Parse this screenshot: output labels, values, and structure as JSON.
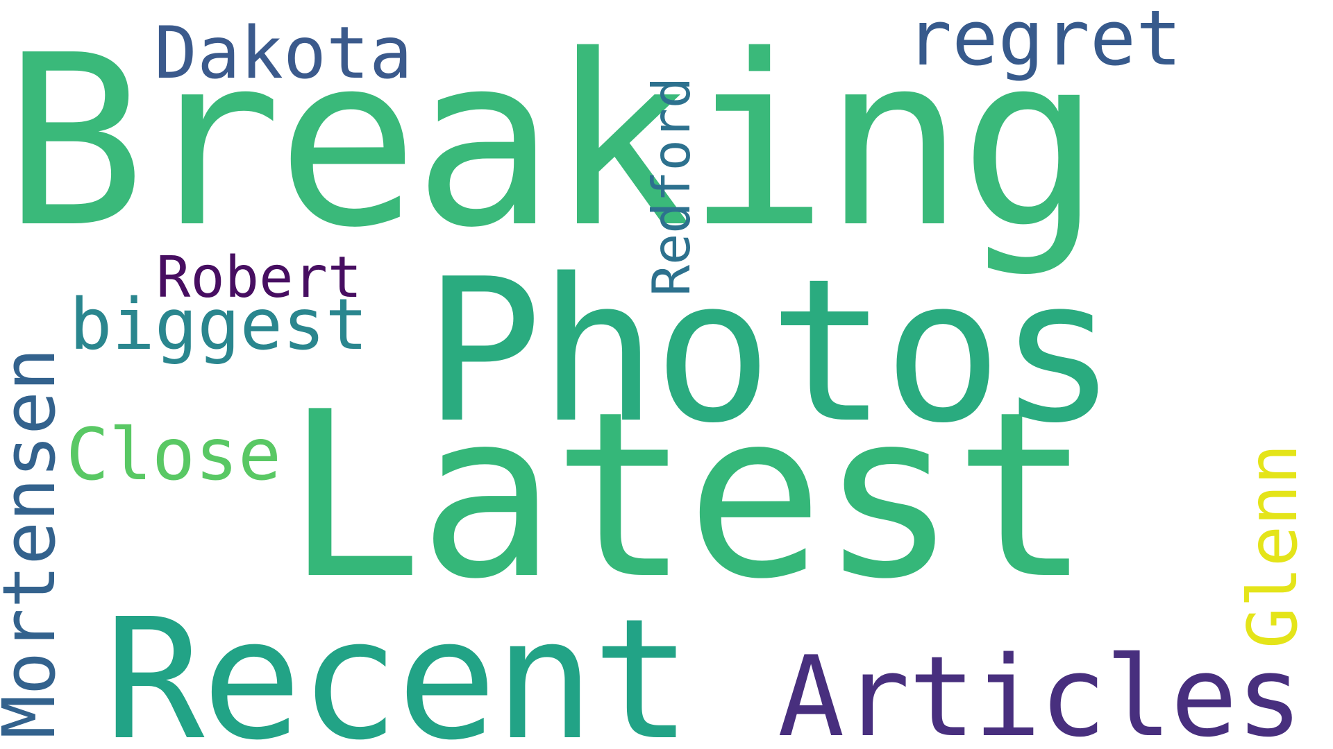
{
  "words": {
    "breaking": {
      "text": "Breaking",
      "color": "#3ab97a"
    },
    "latest": {
      "text": "Latest",
      "color": "#35b779"
    },
    "photos": {
      "text": "Photos",
      "color": "#2aab7f"
    },
    "recent": {
      "text": "Recent",
      "color": "#22a386"
    },
    "articles": {
      "text": "Articles",
      "color": "#482f7e"
    },
    "mortensen": {
      "text": "Mortensen",
      "color": "#33628d"
    },
    "regret": {
      "text": "regret",
      "color": "#375a8c"
    },
    "dakota": {
      "text": "Dakota",
      "color": "#3b5a8c"
    },
    "redford": {
      "text": "Redford",
      "color": "#2d718e"
    },
    "biggest": {
      "text": "biggest",
      "color": "#2a868e"
    },
    "robert": {
      "text": "Robert",
      "color": "#470e61"
    },
    "close": {
      "text": "Close",
      "color": "#59c864"
    },
    "glenn": {
      "text": "Glenn",
      "color": "#e4e419"
    }
  }
}
